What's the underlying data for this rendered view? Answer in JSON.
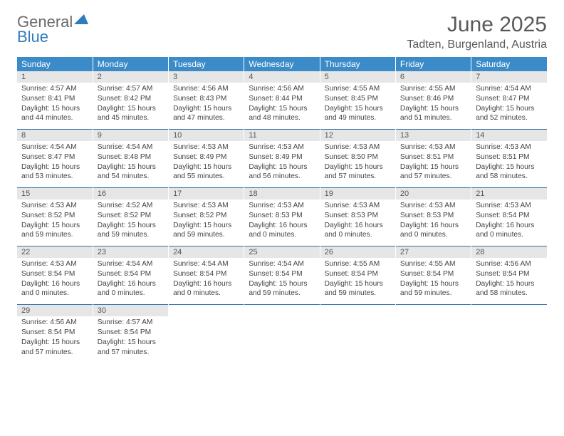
{
  "logo": {
    "line1": "General",
    "line2": "Blue"
  },
  "title": "June 2025",
  "location": "Tadten, Burgenland, Austria",
  "colors": {
    "header_bg": "#3b8bc8",
    "header_text": "#ffffff",
    "daynum_bg": "#e6e6e6",
    "separator": "#2f6fa8",
    "body_text": "#444444",
    "title_text": "#5a5a5a",
    "logo_gray": "#6a6a6a",
    "logo_blue": "#2f7bbf",
    "background": "#ffffff"
  },
  "typography": {
    "title_fontsize": 30,
    "location_fontsize": 16,
    "dow_fontsize": 12,
    "daynum_fontsize": 11,
    "detail_fontsize": 10.2
  },
  "dow": [
    "Sunday",
    "Monday",
    "Tuesday",
    "Wednesday",
    "Thursday",
    "Friday",
    "Saturday"
  ],
  "weeks": [
    [
      {
        "n": "1",
        "sr": "Sunrise: 4:57 AM",
        "ss": "Sunset: 8:41 PM",
        "d1": "Daylight: 15 hours",
        "d2": "and 44 minutes."
      },
      {
        "n": "2",
        "sr": "Sunrise: 4:57 AM",
        "ss": "Sunset: 8:42 PM",
        "d1": "Daylight: 15 hours",
        "d2": "and 45 minutes."
      },
      {
        "n": "3",
        "sr": "Sunrise: 4:56 AM",
        "ss": "Sunset: 8:43 PM",
        "d1": "Daylight: 15 hours",
        "d2": "and 47 minutes."
      },
      {
        "n": "4",
        "sr": "Sunrise: 4:56 AM",
        "ss": "Sunset: 8:44 PM",
        "d1": "Daylight: 15 hours",
        "d2": "and 48 minutes."
      },
      {
        "n": "5",
        "sr": "Sunrise: 4:55 AM",
        "ss": "Sunset: 8:45 PM",
        "d1": "Daylight: 15 hours",
        "d2": "and 49 minutes."
      },
      {
        "n": "6",
        "sr": "Sunrise: 4:55 AM",
        "ss": "Sunset: 8:46 PM",
        "d1": "Daylight: 15 hours",
        "d2": "and 51 minutes."
      },
      {
        "n": "7",
        "sr": "Sunrise: 4:54 AM",
        "ss": "Sunset: 8:47 PM",
        "d1": "Daylight: 15 hours",
        "d2": "and 52 minutes."
      }
    ],
    [
      {
        "n": "8",
        "sr": "Sunrise: 4:54 AM",
        "ss": "Sunset: 8:47 PM",
        "d1": "Daylight: 15 hours",
        "d2": "and 53 minutes."
      },
      {
        "n": "9",
        "sr": "Sunrise: 4:54 AM",
        "ss": "Sunset: 8:48 PM",
        "d1": "Daylight: 15 hours",
        "d2": "and 54 minutes."
      },
      {
        "n": "10",
        "sr": "Sunrise: 4:53 AM",
        "ss": "Sunset: 8:49 PM",
        "d1": "Daylight: 15 hours",
        "d2": "and 55 minutes."
      },
      {
        "n": "11",
        "sr": "Sunrise: 4:53 AM",
        "ss": "Sunset: 8:49 PM",
        "d1": "Daylight: 15 hours",
        "d2": "and 56 minutes."
      },
      {
        "n": "12",
        "sr": "Sunrise: 4:53 AM",
        "ss": "Sunset: 8:50 PM",
        "d1": "Daylight: 15 hours",
        "d2": "and 57 minutes."
      },
      {
        "n": "13",
        "sr": "Sunrise: 4:53 AM",
        "ss": "Sunset: 8:51 PM",
        "d1": "Daylight: 15 hours",
        "d2": "and 57 minutes."
      },
      {
        "n": "14",
        "sr": "Sunrise: 4:53 AM",
        "ss": "Sunset: 8:51 PM",
        "d1": "Daylight: 15 hours",
        "d2": "and 58 minutes."
      }
    ],
    [
      {
        "n": "15",
        "sr": "Sunrise: 4:53 AM",
        "ss": "Sunset: 8:52 PM",
        "d1": "Daylight: 15 hours",
        "d2": "and 59 minutes."
      },
      {
        "n": "16",
        "sr": "Sunrise: 4:52 AM",
        "ss": "Sunset: 8:52 PM",
        "d1": "Daylight: 15 hours",
        "d2": "and 59 minutes."
      },
      {
        "n": "17",
        "sr": "Sunrise: 4:53 AM",
        "ss": "Sunset: 8:52 PM",
        "d1": "Daylight: 15 hours",
        "d2": "and 59 minutes."
      },
      {
        "n": "18",
        "sr": "Sunrise: 4:53 AM",
        "ss": "Sunset: 8:53 PM",
        "d1": "Daylight: 16 hours",
        "d2": "and 0 minutes."
      },
      {
        "n": "19",
        "sr": "Sunrise: 4:53 AM",
        "ss": "Sunset: 8:53 PM",
        "d1": "Daylight: 16 hours",
        "d2": "and 0 minutes."
      },
      {
        "n": "20",
        "sr": "Sunrise: 4:53 AM",
        "ss": "Sunset: 8:53 PM",
        "d1": "Daylight: 16 hours",
        "d2": "and 0 minutes."
      },
      {
        "n": "21",
        "sr": "Sunrise: 4:53 AM",
        "ss": "Sunset: 8:54 PM",
        "d1": "Daylight: 16 hours",
        "d2": "and 0 minutes."
      }
    ],
    [
      {
        "n": "22",
        "sr": "Sunrise: 4:53 AM",
        "ss": "Sunset: 8:54 PM",
        "d1": "Daylight: 16 hours",
        "d2": "and 0 minutes."
      },
      {
        "n": "23",
        "sr": "Sunrise: 4:54 AM",
        "ss": "Sunset: 8:54 PM",
        "d1": "Daylight: 16 hours",
        "d2": "and 0 minutes."
      },
      {
        "n": "24",
        "sr": "Sunrise: 4:54 AM",
        "ss": "Sunset: 8:54 PM",
        "d1": "Daylight: 16 hours",
        "d2": "and 0 minutes."
      },
      {
        "n": "25",
        "sr": "Sunrise: 4:54 AM",
        "ss": "Sunset: 8:54 PM",
        "d1": "Daylight: 15 hours",
        "d2": "and 59 minutes."
      },
      {
        "n": "26",
        "sr": "Sunrise: 4:55 AM",
        "ss": "Sunset: 8:54 PM",
        "d1": "Daylight: 15 hours",
        "d2": "and 59 minutes."
      },
      {
        "n": "27",
        "sr": "Sunrise: 4:55 AM",
        "ss": "Sunset: 8:54 PM",
        "d1": "Daylight: 15 hours",
        "d2": "and 59 minutes."
      },
      {
        "n": "28",
        "sr": "Sunrise: 4:56 AM",
        "ss": "Sunset: 8:54 PM",
        "d1": "Daylight: 15 hours",
        "d2": "and 58 minutes."
      }
    ],
    [
      {
        "n": "29",
        "sr": "Sunrise: 4:56 AM",
        "ss": "Sunset: 8:54 PM",
        "d1": "Daylight: 15 hours",
        "d2": "and 57 minutes."
      },
      {
        "n": "30",
        "sr": "Sunrise: 4:57 AM",
        "ss": "Sunset: 8:54 PM",
        "d1": "Daylight: 15 hours",
        "d2": "and 57 minutes."
      },
      null,
      null,
      null,
      null,
      null
    ]
  ]
}
